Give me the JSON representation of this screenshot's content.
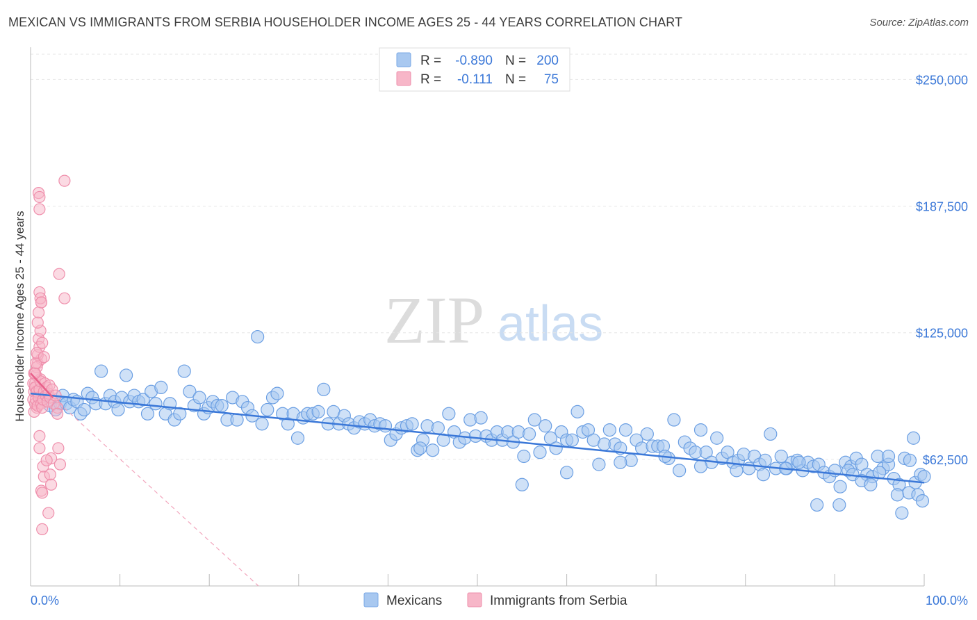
{
  "title": "MEXICAN VS IMMIGRANTS FROM SERBIA HOUSEHOLDER INCOME AGES 25 - 44 YEARS CORRELATION CHART",
  "source": "Source: ZipAtlas.com",
  "watermark": {
    "zip": "ZIP",
    "atlas": "atlas"
  },
  "legend": {
    "rows": [
      {
        "r_label": "R =",
        "r_value": "-0.890",
        "n_label": "N =",
        "n_value": "200",
        "color": "#a8c8f0"
      },
      {
        "r_label": "R =",
        "r_value": "-0.111",
        "n_label": "N =",
        "n_value": "75",
        "color": "#f7b6c8"
      }
    ]
  },
  "bottom_legend": [
    {
      "label": "Mexicans",
      "color": "#a8c8f0"
    },
    {
      "label": "Immigrants from Serbia",
      "color": "#f7b6c8"
    }
  ],
  "chart_data": {
    "type": "scatter",
    "title": "MEXICAN VS IMMIGRANTS FROM SERBIA HOUSEHOLDER INCOME AGES 25 - 44 YEARS CORRELATION CHART",
    "xlabel": "",
    "ylabel": "Householder Income Ages 25 - 44 years",
    "xlim": [
      0,
      100
    ],
    "ylim": [
      0,
      262500
    ],
    "x_tick_labels": [
      "0.0%",
      "100.0%"
    ],
    "y_ticks": [
      62500,
      125000,
      187500,
      250000
    ],
    "y_tick_labels": [
      "$62,500",
      "$125,000",
      "$187,500",
      "$250,000"
    ],
    "grid": true,
    "colors": {
      "blue": "#3b78d8",
      "blue_fill": "#a8c8f0",
      "pink": "#e8608a",
      "pink_fill": "#f7b6c8"
    },
    "series": [
      {
        "name": "Mexicans",
        "color": "#3b78d8",
        "trend": {
          "x": [
            0,
            100
          ],
          "y": [
            95000,
            51000
          ]
        },
        "points": [
          [
            1.2,
            92000
          ],
          [
            1.8,
            94000
          ],
          [
            2.2,
            89000
          ],
          [
            2.8,
            87000
          ],
          [
            3.3,
            90000
          ],
          [
            3.6,
            94000
          ],
          [
            4.0,
            90000
          ],
          [
            4.4,
            88000
          ],
          [
            4.8,
            92000
          ],
          [
            5.2,
            91000
          ],
          [
            5.6,
            85000
          ],
          [
            6.0,
            87000
          ],
          [
            6.4,
            95000
          ],
          [
            6.9,
            93000
          ],
          [
            7.3,
            90000
          ],
          [
            7.9,
            106000
          ],
          [
            8.4,
            90000
          ],
          [
            8.9,
            94000
          ],
          [
            9.4,
            91000
          ],
          [
            9.8,
            87000
          ],
          [
            10.2,
            93000
          ],
          [
            10.7,
            104000
          ],
          [
            11.1,
            91000
          ],
          [
            11.6,
            94000
          ],
          [
            12.1,
            91000
          ],
          [
            12.6,
            92000
          ],
          [
            13.1,
            85000
          ],
          [
            13.5,
            96000
          ],
          [
            14.0,
            90000
          ],
          [
            14.6,
            98000
          ],
          [
            15.1,
            85000
          ],
          [
            15.6,
            90000
          ],
          [
            16.1,
            82000
          ],
          [
            16.7,
            85000
          ],
          [
            17.2,
            106000
          ],
          [
            17.8,
            96000
          ],
          [
            18.3,
            89000
          ],
          [
            18.9,
            93000
          ],
          [
            19.4,
            85000
          ],
          [
            19.9,
            88000
          ],
          [
            20.4,
            91000
          ],
          [
            20.9,
            89000
          ],
          [
            21.4,
            89000
          ],
          [
            22.0,
            82000
          ],
          [
            22.6,
            93000
          ],
          [
            23.1,
            82000
          ],
          [
            23.7,
            91000
          ],
          [
            24.3,
            88000
          ],
          [
            24.8,
            84000
          ],
          [
            25.4,
            123000
          ],
          [
            25.9,
            80000
          ],
          [
            26.5,
            87000
          ],
          [
            27.1,
            93000
          ],
          [
            27.6,
            95000
          ],
          [
            28.2,
            85000
          ],
          [
            28.8,
            80000
          ],
          [
            29.4,
            85000
          ],
          [
            29.9,
            73000
          ],
          [
            30.5,
            83000
          ],
          [
            31.0,
            85000
          ],
          [
            31.6,
            85000
          ],
          [
            32.2,
            86000
          ],
          [
            32.8,
            97000
          ],
          [
            33.3,
            80000
          ],
          [
            33.9,
            86000
          ],
          [
            34.5,
            80000
          ],
          [
            35.1,
            84000
          ],
          [
            35.6,
            80000
          ],
          [
            36.2,
            78000
          ],
          [
            36.8,
            81000
          ],
          [
            37.4,
            80000
          ],
          [
            38.0,
            82000
          ],
          [
            38.5,
            79000
          ],
          [
            39.1,
            80000
          ],
          [
            39.7,
            79000
          ],
          [
            40.3,
            72000
          ],
          [
            40.9,
            75000
          ],
          [
            41.5,
            78000
          ],
          [
            42.1,
            79000
          ],
          [
            42.7,
            80000
          ],
          [
            43.3,
            67000
          ],
          [
            43.9,
            72000
          ],
          [
            44.4,
            79000
          ],
          [
            45.0,
            67000
          ],
          [
            45.6,
            78000
          ],
          [
            46.2,
            72000
          ],
          [
            46.8,
            85000
          ],
          [
            47.4,
            76000
          ],
          [
            48.0,
            71000
          ],
          [
            48.6,
            73000
          ],
          [
            49.2,
            82000
          ],
          [
            49.8,
            74000
          ],
          [
            50.4,
            83000
          ],
          [
            51.0,
            74000
          ],
          [
            51.6,
            72000
          ],
          [
            52.2,
            76000
          ],
          [
            52.8,
            72000
          ],
          [
            53.4,
            76000
          ],
          [
            54.0,
            71000
          ],
          [
            54.6,
            76000
          ],
          [
            55.2,
            64000
          ],
          [
            55.8,
            75000
          ],
          [
            56.4,
            82000
          ],
          [
            57.0,
            66000
          ],
          [
            57.6,
            79000
          ],
          [
            58.2,
            73000
          ],
          [
            58.8,
            68000
          ],
          [
            59.4,
            76000
          ],
          [
            60.0,
            72000
          ],
          [
            60.6,
            72000
          ],
          [
            61.2,
            86000
          ],
          [
            61.8,
            76000
          ],
          [
            62.4,
            77000
          ],
          [
            63.0,
            72000
          ],
          [
            63.6,
            60000
          ],
          [
            64.2,
            70000
          ],
          [
            64.8,
            77000
          ],
          [
            65.4,
            70000
          ],
          [
            66.0,
            68000
          ],
          [
            66.6,
            77000
          ],
          [
            67.2,
            62000
          ],
          [
            67.8,
            72000
          ],
          [
            68.4,
            68000
          ],
          [
            69.0,
            75000
          ],
          [
            69.6,
            69000
          ],
          [
            70.2,
            69000
          ],
          [
            70.8,
            69000
          ],
          [
            71.4,
            63000
          ],
          [
            72.0,
            82000
          ],
          [
            72.6,
            57000
          ],
          [
            73.2,
            71000
          ],
          [
            73.8,
            68000
          ],
          [
            74.4,
            66000
          ],
          [
            75.0,
            77000
          ],
          [
            75.6,
            66000
          ],
          [
            76.2,
            61000
          ],
          [
            76.8,
            73000
          ],
          [
            77.4,
            63000
          ],
          [
            78.0,
            66000
          ],
          [
            78.6,
            61000
          ],
          [
            79.2,
            62000
          ],
          [
            79.8,
            65000
          ],
          [
            80.4,
            58000
          ],
          [
            81.0,
            64000
          ],
          [
            81.6,
            60000
          ],
          [
            82.2,
            62000
          ],
          [
            82.8,
            75000
          ],
          [
            83.4,
            58000
          ],
          [
            84.0,
            64000
          ],
          [
            84.6,
            58000
          ],
          [
            85.2,
            61000
          ],
          [
            85.8,
            62000
          ],
          [
            86.4,
            57000
          ],
          [
            87.0,
            61000
          ],
          [
            87.6,
            59000
          ],
          [
            88.2,
            60000
          ],
          [
            88.8,
            56000
          ],
          [
            89.4,
            54000
          ],
          [
            90.0,
            57000
          ],
          [
            90.6,
            49000
          ],
          [
            91.2,
            61000
          ],
          [
            91.8,
            59000
          ],
          [
            92.4,
            63000
          ],
          [
            93.0,
            60000
          ],
          [
            93.6,
            55000
          ],
          [
            94.2,
            54000
          ],
          [
            94.8,
            64000
          ],
          [
            95.4,
            58000
          ],
          [
            96.0,
            60000
          ],
          [
            96.6,
            53000
          ],
          [
            97.2,
            50000
          ],
          [
            97.8,
            63000
          ],
          [
            98.4,
            62000
          ],
          [
            99.0,
            51000
          ],
          [
            99.6,
            55000
          ],
          [
            100.0,
            54000
          ],
          [
            55.0,
            50000
          ],
          [
            60.0,
            56000
          ],
          [
            66.0,
            61000
          ],
          [
            71.0,
            64000
          ],
          [
            75.0,
            59000
          ],
          [
            79.0,
            57000
          ],
          [
            82.0,
            55000
          ],
          [
            84.5,
            58000
          ],
          [
            86.0,
            61000
          ],
          [
            88.0,
            40000
          ],
          [
            90.5,
            40000
          ],
          [
            91.5,
            57000
          ],
          [
            92.0,
            55000
          ],
          [
            93.0,
            52000
          ],
          [
            94.0,
            50000
          ],
          [
            95.0,
            56000
          ],
          [
            96.0,
            64000
          ],
          [
            97.0,
            45000
          ],
          [
            97.5,
            36000
          ],
          [
            98.3,
            46000
          ],
          [
            98.8,
            73000
          ],
          [
            99.3,
            45000
          ],
          [
            99.8,
            42000
          ],
          [
            43.6,
            68000
          ]
        ]
      },
      {
        "name": "Immigrants from Serbia",
        "color": "#e8608a",
        "trend": {
          "x": [
            0,
            2.5
          ],
          "y": [
            105000,
            93000
          ]
        },
        "trend_dashed": {
          "x": [
            2.5,
            25.5
          ],
          "y": [
            93000,
            0
          ]
        },
        "points": [
          [
            0.3,
            92000
          ],
          [
            0.4,
            96000
          ],
          [
            0.5,
            100000
          ],
          [
            0.6,
            104000
          ],
          [
            0.7,
            88000
          ],
          [
            0.8,
            110000
          ],
          [
            0.9,
            95000
          ],
          [
            1.0,
            90000
          ],
          [
            1.1,
            102000
          ],
          [
            1.2,
            112000
          ],
          [
            0.4,
            86000
          ],
          [
            0.5,
            90000
          ],
          [
            0.6,
            98000
          ],
          [
            0.7,
            108000
          ],
          [
            0.8,
            114000
          ],
          [
            0.9,
            122000
          ],
          [
            1.0,
            118000
          ],
          [
            1.1,
            126000
          ],
          [
            1.2,
            140000
          ],
          [
            1.3,
            94000
          ],
          [
            0.3,
            100000
          ],
          [
            0.4,
            105000
          ],
          [
            0.5,
            98000
          ],
          [
            0.6,
            92000
          ],
          [
            0.7,
            96000
          ],
          [
            0.8,
            89000
          ],
          [
            0.9,
            93000
          ],
          [
            1.0,
            97000
          ],
          [
            1.1,
            101000
          ],
          [
            1.2,
            90000
          ],
          [
            1.3,
            88000
          ],
          [
            1.4,
            92000
          ],
          [
            1.5,
            96000
          ],
          [
            1.6,
            100000
          ],
          [
            1.7,
            94000
          ],
          [
            1.8,
            98000
          ],
          [
            1.9,
            91000
          ],
          [
            2.0,
            95000
          ],
          [
            2.1,
            99000
          ],
          [
            2.2,
            93000
          ],
          [
            2.4,
            97000
          ],
          [
            2.6,
            90000
          ],
          [
            2.8,
            94000
          ],
          [
            3.0,
            88000
          ],
          [
            0.5,
            105000
          ],
          [
            0.6,
            110000
          ],
          [
            0.7,
            115000
          ],
          [
            0.8,
            130000
          ],
          [
            0.9,
            135000
          ],
          [
            1.0,
            145000
          ],
          [
            1.1,
            142000
          ],
          [
            1.2,
            140000
          ],
          [
            1.3,
            120000
          ],
          [
            1.5,
            113000
          ],
          [
            0.9,
            194000
          ],
          [
            1.0,
            192000
          ],
          [
            1.0,
            186000
          ],
          [
            3.8,
            200000
          ],
          [
            3.2,
            154000
          ],
          [
            3.8,
            142000
          ],
          [
            1.0,
            74000
          ],
          [
            1.0,
            68000
          ],
          [
            1.5,
            54000
          ],
          [
            1.4,
            59000
          ],
          [
            2.3,
            63000
          ],
          [
            1.8,
            62000
          ],
          [
            2.2,
            55000
          ],
          [
            2.3,
            50000
          ],
          [
            1.2,
            47000
          ],
          [
            1.3,
            46000
          ],
          [
            2.0,
            36000
          ],
          [
            1.3,
            28000
          ],
          [
            3.1,
            68000
          ],
          [
            3.3,
            60000
          ],
          [
            3.0,
            85000
          ]
        ]
      }
    ]
  }
}
